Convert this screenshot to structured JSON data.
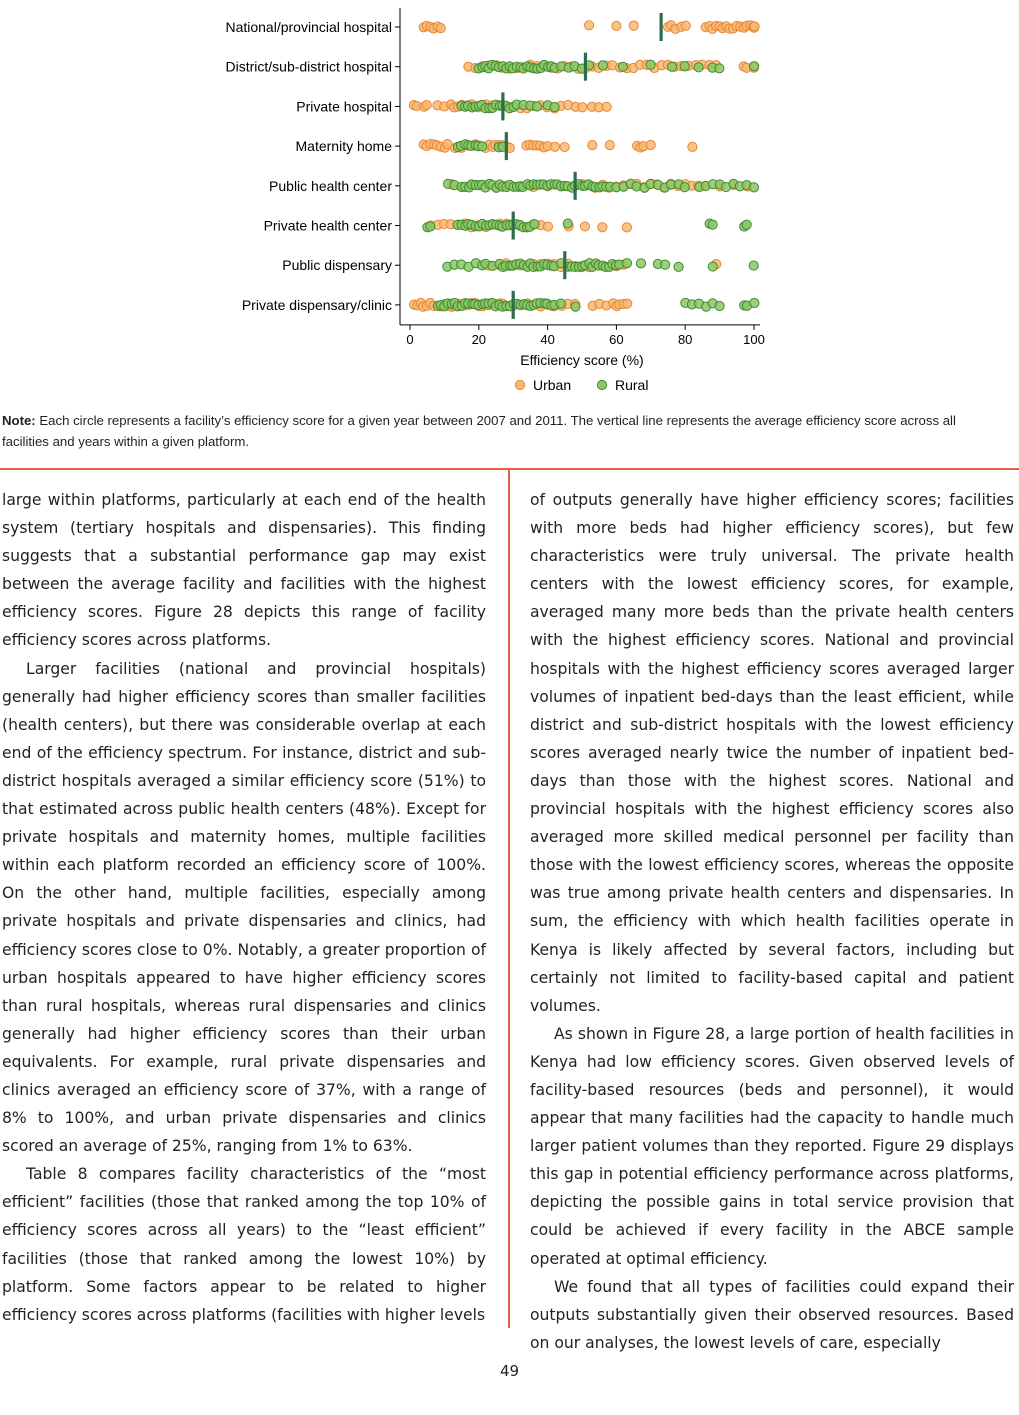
{
  "chart_data": {
    "type": "scatter",
    "categories": [
      "National/provincial hospital",
      "District/sub-district hospital",
      "Private hospital",
      "Maternity home",
      "Public health center",
      "Private health center",
      "Public dispensary",
      "Private dispensary/clinic"
    ],
    "xlabel": "Efficiency score (%)",
    "xlim": [
      0,
      100
    ],
    "xticks": [
      0,
      20,
      40,
      60,
      80,
      100
    ],
    "legend": [
      {
        "name": "Urban",
        "color": "#f7b96f"
      },
      {
        "name": "Rural",
        "color": "#8cc865"
      }
    ],
    "legend_position": "bottom",
    "colors": {
      "urban": "#f7b96f",
      "urban_edge": "#e8863a",
      "rural": "#8cc865",
      "rural_edge": "#3f8a33",
      "mean_line": "#2c6e49"
    },
    "platforms": [
      {
        "averages": 73,
        "urban": [
          4,
          5,
          6,
          7,
          8,
          9,
          52,
          60,
          65,
          75,
          76,
          77,
          79,
          80,
          86,
          87,
          88,
          89,
          90,
          91,
          92,
          93,
          94,
          95,
          96,
          97,
          98,
          99,
          100,
          100,
          100
        ],
        "rural": []
      },
      {
        "averages": 51,
        "urban": [
          17,
          19,
          21,
          23,
          25,
          27,
          29,
          31,
          33,
          35,
          37,
          39,
          41,
          43,
          45,
          47,
          49,
          51,
          53,
          55,
          57,
          59,
          61,
          63,
          65,
          67,
          69,
          71,
          73,
          75,
          77,
          79,
          81,
          83,
          85,
          87,
          89,
          97,
          98,
          100
        ],
        "rural": [
          20,
          21,
          22,
          23,
          24,
          25,
          26,
          27,
          28,
          29,
          30,
          31,
          32,
          33,
          34,
          35,
          36,
          37,
          38,
          39,
          40,
          41,
          42,
          44,
          46,
          48,
          50,
          52,
          56,
          62,
          70,
          76,
          80,
          84,
          88,
          90,
          100
        ]
      },
      {
        "averages": 27,
        "urban": [
          1,
          2,
          4,
          5,
          8,
          10,
          12,
          13,
          14,
          15,
          17,
          18,
          20,
          22,
          24,
          26,
          28,
          30,
          32,
          34,
          36,
          38,
          40,
          42,
          44,
          46,
          48,
          50,
          53,
          55,
          57
        ],
        "rural": [
          15,
          16,
          17,
          18,
          19,
          20,
          21,
          22,
          23,
          24,
          25,
          26,
          27,
          28,
          29,
          30,
          31,
          33,
          35,
          37,
          40,
          42
        ]
      },
      {
        "averages": 28,
        "urban": [
          4,
          5,
          6,
          7,
          8,
          9,
          10,
          11,
          13,
          14,
          15,
          17,
          19,
          20,
          22,
          23,
          24,
          25,
          26,
          27,
          28,
          29,
          34,
          35,
          36,
          37,
          38,
          39,
          40,
          42,
          45,
          53,
          58,
          66,
          67,
          68,
          70,
          82
        ],
        "rural": [
          14,
          15,
          16,
          17,
          18,
          19,
          20,
          21,
          26,
          27
        ]
      },
      {
        "averages": 48,
        "urban": [
          12,
          15,
          18,
          22,
          25,
          28,
          32,
          36,
          40,
          44,
          48,
          50,
          52,
          54,
          56,
          58,
          60,
          62,
          64,
          66,
          68,
          70,
          72,
          74,
          76,
          78,
          80,
          82,
          84,
          86,
          90,
          94,
          98
        ],
        "rural": [
          11,
          13,
          15,
          16,
          17,
          18,
          19,
          20,
          21,
          22,
          23,
          24,
          25,
          26,
          27,
          28,
          29,
          30,
          31,
          32,
          33,
          34,
          35,
          36,
          37,
          38,
          39,
          40,
          41,
          42,
          43,
          44,
          45,
          46,
          47,
          48,
          49,
          50,
          51,
          52,
          53,
          54,
          55,
          56,
          57,
          58,
          60,
          62,
          64,
          66,
          68,
          70,
          72,
          74,
          76,
          78,
          80,
          84,
          86,
          88,
          90,
          92,
          94,
          96,
          98,
          100
        ]
      },
      {
        "averages": 30,
        "urban": [
          6,
          8,
          10,
          12,
          14,
          16,
          18,
          20,
          22,
          24,
          26,
          28,
          30,
          32,
          34,
          36,
          38,
          40,
          46,
          51,
          56,
          63
        ],
        "rural": [
          5,
          6,
          14,
          15,
          16,
          17,
          18,
          19,
          20,
          21,
          22,
          23,
          24,
          25,
          26,
          27,
          28,
          29,
          30,
          31,
          32,
          33,
          34,
          35,
          36,
          46,
          87,
          88,
          97,
          98
        ]
      },
      {
        "averages": 45,
        "urban": [
          23,
          26,
          28,
          30,
          32,
          34,
          36,
          38,
          40,
          42,
          44,
          46,
          48,
          50,
          52,
          54,
          56,
          58,
          60,
          62,
          89
        ],
        "rural": [
          11,
          13,
          15,
          17,
          19,
          21,
          22,
          24,
          26,
          27,
          28,
          29,
          30,
          31,
          32,
          33,
          34,
          35,
          36,
          37,
          38,
          39,
          40,
          41,
          42,
          44,
          46,
          47,
          48,
          49,
          50,
          51,
          52,
          53,
          54,
          55,
          56,
          57,
          58,
          59,
          60,
          61,
          63,
          67,
          72,
          74,
          78,
          88,
          100
        ]
      },
      {
        "averages": 30,
        "urban": [
          1,
          2,
          3,
          4,
          5,
          6,
          7,
          8,
          9,
          10,
          11,
          12,
          13,
          14,
          15,
          16,
          17,
          18,
          19,
          20,
          21,
          22,
          23,
          24,
          25,
          26,
          27,
          28,
          30,
          32,
          34,
          38,
          40,
          42,
          44,
          46,
          48,
          53,
          55,
          57,
          59,
          60,
          61,
          62,
          63
        ],
        "rural": [
          8,
          9,
          10,
          11,
          12,
          13,
          14,
          15,
          16,
          17,
          18,
          19,
          20,
          21,
          22,
          23,
          24,
          25,
          26,
          27,
          28,
          29,
          30,
          31,
          32,
          33,
          34,
          35,
          36,
          37,
          38,
          39,
          40,
          41,
          42,
          44,
          48,
          80,
          82,
          84,
          86,
          88,
          90,
          97,
          98,
          100
        ]
      }
    ]
  },
  "note": {
    "label": "Note:",
    "text": " Each circle represents a facility’s efficiency score for a given year between 2007 and 2011. The vertical line represents the average efficiency score across all facilities and years within a given platform."
  },
  "body": {
    "left": [
      "large within platforms, particularly at each end of the health system (tertiary hospitals and dispensaries). This finding suggests that a substantial performance gap may exist between the average facility and facilities with the highest efficiency scores. Figure 28 depicts this range of facility efficiency scores across platforms.",
      "Larger facilities (national and provincial hospitals) generally had higher efficiency scores than smaller facilities (health centers), but there was considerable overlap at each end of the efficiency spectrum. For instance, district and sub-district hospitals averaged a similar efficiency score (51%) to that estimated across public health centers (48%). Except for private hospitals and maternity homes, multiple facilities within each platform recorded an efficiency score of 100%. On the other hand, multiple facilities, especially among private hospitals and private dispensaries and clinics, had efficiency scores close to 0%. Notably, a greater proportion of urban hospitals appeared to have higher efficiency scores than rural hospitals, whereas rural dispensaries and clinics generally had higher efficiency scores than their urban equivalents. For example, rural private dispensaries and clinics averaged an efficiency score of 37%, with a range of 8% to 100%, and urban private dispensaries and clinics scored an average of 25%, ranging from 1% to 63%.",
      "Table 8 compares facility characteristics of the “most efficient” facilities (those that ranked among the top 10% of efficiency scores across all years) to the “least efficient” facilities (those that ranked among the lowest 10%) by platform. Some factors appear to be related to higher efficiency scores across platforms (facilities with higher levels"
    ],
    "right": [
      "of outputs generally have higher efficiency scores; facilities with more beds had higher efficiency scores), but few characteristics were truly universal. The private health centers with the lowest efficiency scores, for example, averaged many more beds than the private health centers with the highest efficiency scores. National and provincial hospitals with the highest efficiency scores averaged larger volumes of inpatient bed-days than the least efficient, while district and sub-district hospitals with the lowest efficiency scores averaged nearly twice the number of inpatient bed-days than those with the highest scores. National and provincial hospitals with the highest efficiency scores also averaged more skilled medical personnel per facility than those with the lowest efficiency scores, whereas the opposite was true among private health centers and dispensaries. In sum, the efficiency with which health facilities operate in Kenya is likely affected by several factors, including but certainly not limited to facility-based capital and patient volumes.",
      "As shown in Figure 28, a large portion of health facilities in Kenya had low efficiency scores. Given observed levels of facility-based resources (beds and personnel), it would appear that many facilities had the capacity to handle much larger patient volumes than they reported. Figure 29 displays this gap in potential efficiency performance across platforms, depicting the possible gains in total service provision that could be achieved if every facility in the ABCE sample operated at optimal efficiency.",
      "We found that all types of facilities could expand their outputs substantially given their observed resources. Based on our analyses, the lowest levels of care, especially"
    ]
  },
  "page_number": "49"
}
